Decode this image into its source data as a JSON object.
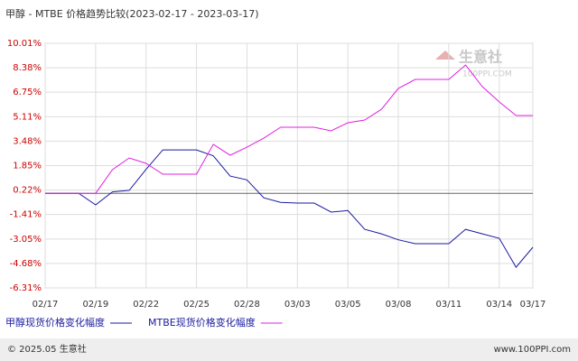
{
  "chart_data": {
    "type": "line",
    "title": "甲醇 - MTBE 价格趋势比较(2023-02-17 - 2023-03-17)",
    "categories": [
      "02/17",
      null,
      null,
      "02/19",
      null,
      null,
      "02/22",
      null,
      null,
      "02/25",
      null,
      null,
      "02/28",
      null,
      null,
      "03/03",
      null,
      null,
      "03/05",
      null,
      null,
      "03/08",
      null,
      null,
      "03/11",
      null,
      null,
      "03/14",
      null,
      "03/17"
    ],
    "series": [
      {
        "name": "甲醇现货价格变化幅度",
        "color": "#1a1aa0",
        "values": [
          0,
          0,
          0,
          -0.77,
          0.1,
          0.2,
          1.6,
          2.9,
          2.9,
          2.9,
          2.5,
          1.15,
          0.9,
          -0.3,
          -0.6,
          -0.65,
          -0.65,
          -1.25,
          -1.15,
          -2.4,
          -2.7,
          -3.1,
          -3.36,
          -3.36,
          -3.36,
          -2.4,
          -2.7,
          -3.0,
          -4.93,
          -3.6
        ]
      },
      {
        "name": "MTBE现货价格变化幅度",
        "color": "#e020e0",
        "values": [
          0,
          0,
          0,
          0,
          1.58,
          2.36,
          2.0,
          1.28,
          1.28,
          1.28,
          3.27,
          2.54,
          3.08,
          3.68,
          4.41,
          4.41,
          4.41,
          4.17,
          4.71,
          4.89,
          5.61,
          7.0,
          7.6,
          7.6,
          7.6,
          8.56,
          7.12,
          6.1,
          5.19,
          5.19
        ]
      }
    ],
    "ylim": [
      -6.31,
      10.01
    ],
    "yticks": [
      {
        "value": 10.01,
        "label": "10.01%"
      },
      {
        "value": 8.38,
        "label": "8.38%"
      },
      {
        "value": 6.75,
        "label": "6.75%"
      },
      {
        "value": 5.11,
        "label": "5.11%"
      },
      {
        "value": 3.48,
        "label": "3.48%"
      },
      {
        "value": 1.85,
        "label": "1.85%"
      },
      {
        "value": 0.22,
        "label": "0.22%"
      },
      {
        "value": -1.41,
        "label": "-1.41%"
      },
      {
        "value": -3.05,
        "label": "-3.05%"
      },
      {
        "value": -4.68,
        "label": "-4.68%"
      },
      {
        "value": -6.31,
        "label": "-6.31%"
      }
    ],
    "reference_line": 0,
    "grid": true,
    "watermark": "生意社",
    "watermark_sub": "100PPI.COM",
    "footer_left": "© 2025.05 生意社",
    "footer_right": "www.100PPI.com"
  }
}
